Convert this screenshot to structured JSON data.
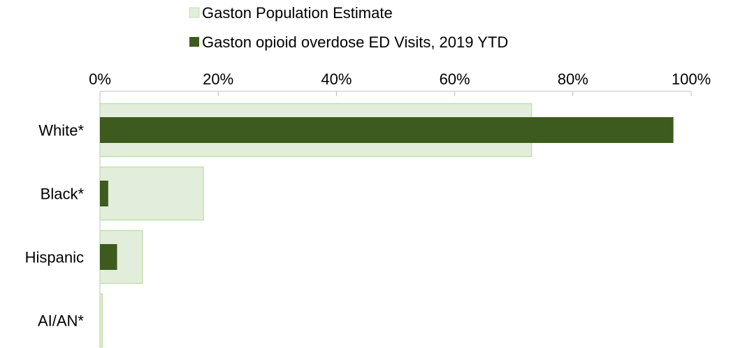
{
  "chart_data": {
    "type": "bar",
    "orientation": "horizontal",
    "categories": [
      "White*",
      "Black*",
      "Hispanic",
      "AI/AN*"
    ],
    "series": [
      {
        "name": "Gaston Population Estimate",
        "values": [
          73,
          17.5,
          7.2,
          0.4
        ],
        "color": "#e2eedb",
        "stroke": "#c5dfb0"
      },
      {
        "name": "Gaston opioid overdose ED Visits, 2019 YTD",
        "values": [
          97,
          1.4,
          2.9,
          0
        ],
        "color": "#3d5a1f"
      }
    ],
    "xlim": [
      0,
      100
    ],
    "x_ticks": [
      "0%",
      "20%",
      "40%",
      "60%",
      "80%",
      "100%"
    ],
    "x_axis_position": "top",
    "legend_position": "top",
    "grid": false
  }
}
